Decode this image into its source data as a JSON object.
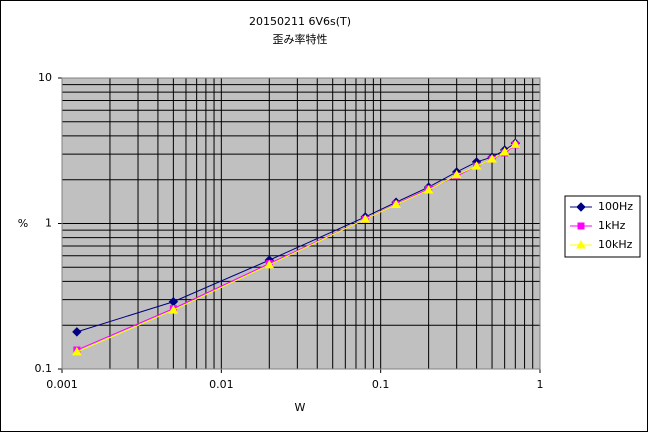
{
  "chart_data": {
    "type": "line",
    "title": "20150211 6V6s(T)",
    "subtitle": "歪み率特性",
    "x_label": "W",
    "y_label": "%",
    "x": [
      0.00124,
      0.005,
      0.02,
      0.08,
      0.125,
      0.2,
      0.3,
      0.4,
      0.5,
      0.6,
      0.7
    ],
    "series": [
      {
        "name": "100Hz",
        "color": "#000080",
        "marker": "diamond",
        "values": [
          0.18,
          0.29,
          0.56,
          1.11,
          1.4,
          1.78,
          2.26,
          2.65,
          2.86,
          3.2,
          3.57
        ]
      },
      {
        "name": "1kHz",
        "color": "#ff00ff",
        "marker": "square",
        "values": [
          0.135,
          0.26,
          0.53,
          1.07,
          1.36,
          1.73,
          2.12,
          2.48,
          2.77,
          3.05,
          3.47
        ]
      },
      {
        "name": "10kHz",
        "color": "#ffff00",
        "marker": "triangle",
        "values": [
          0.131,
          0.254,
          0.52,
          1.07,
          1.35,
          1.7,
          2.16,
          2.48,
          2.77,
          3.1,
          3.5
        ]
      }
    ],
    "xlim": [
      0.001,
      1
    ],
    "ylim": [
      0.1,
      10
    ],
    "xticks": [
      0.001,
      0.01,
      0.1,
      1
    ],
    "yticks": [
      0.1,
      1,
      10
    ],
    "xlog": true,
    "ylog": true,
    "grid": true,
    "minor_grid": true,
    "legend": "right",
    "plot_background": "#c0c0c0"
  }
}
